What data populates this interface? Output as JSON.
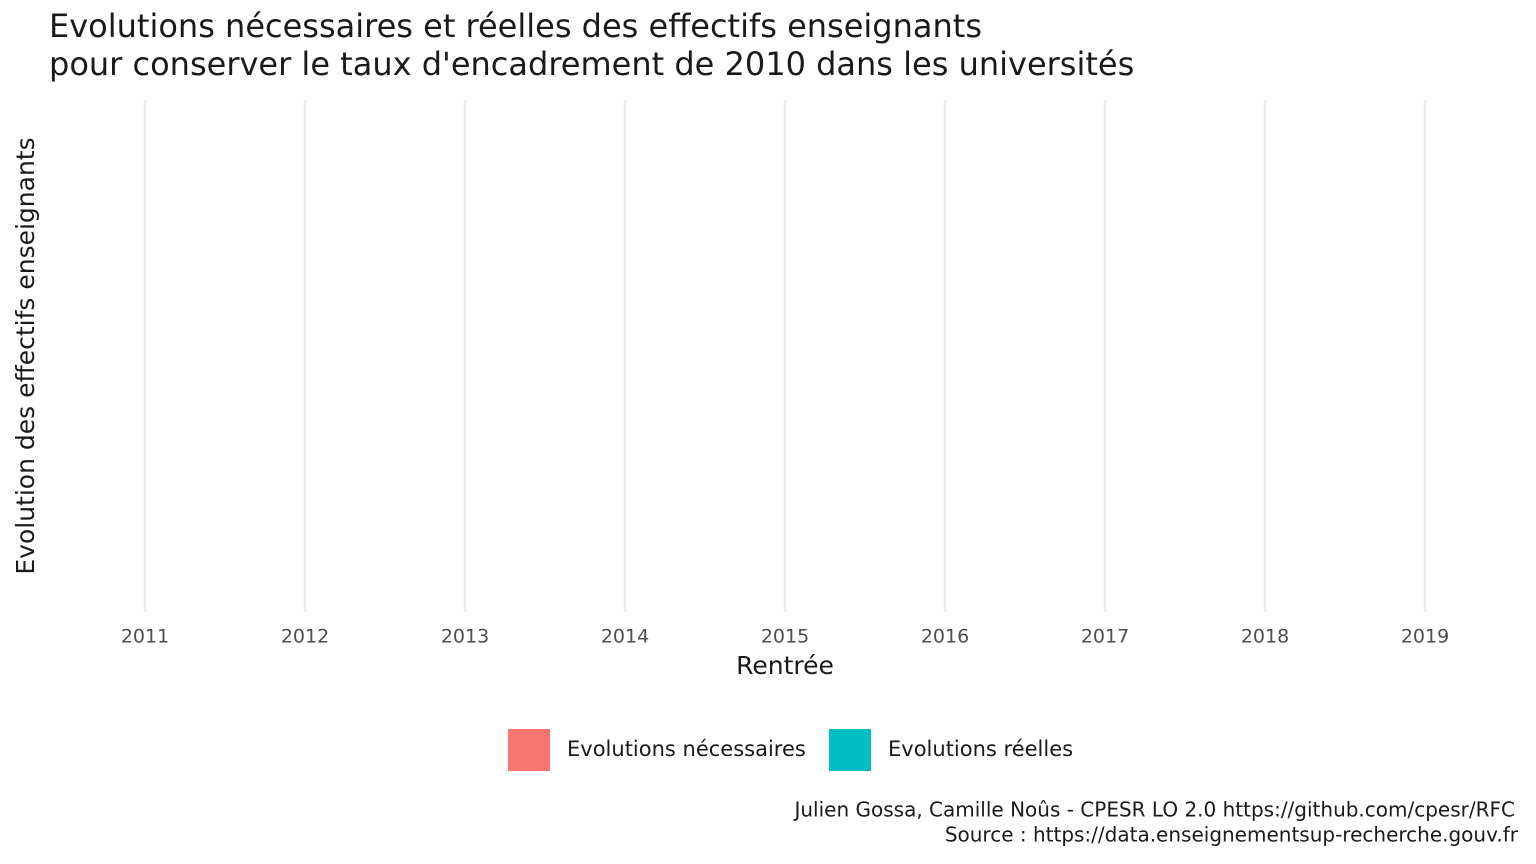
{
  "chart_data": {
    "type": "bar",
    "title": [
      "Evolutions nécessaires et réelles des effectifs enseignants",
      "pour conserver le taux d'encadrement de 2010 dans les universités"
    ],
    "x_label": "Rentrée",
    "y_label": "Evolution des effectifs enseignants",
    "categories": [
      "2011",
      "2012",
      "2013",
      "2014",
      "2015",
      "2016",
      "2017",
      "2018",
      "2019"
    ],
    "series": [
      {
        "name": "Evolutions nécessaires",
        "color": "#f8766d",
        "values": [
          null,
          null,
          null,
          null,
          null,
          null,
          null,
          null,
          null
        ]
      },
      {
        "name": "Evolutions réelles",
        "color": "#00bfc4",
        "values": [
          null,
          null,
          null,
          null,
          null,
          null,
          null,
          null,
          null
        ]
      }
    ],
    "grid": true,
    "legend": "bottom",
    "caption": [
      "Julien Gossa, Camille Noûs - CPESR LO 2.0 https://github.com/cpesr/RFC",
      "Source : https://data.enseignementsup-recherche.gouv.fr"
    ]
  }
}
